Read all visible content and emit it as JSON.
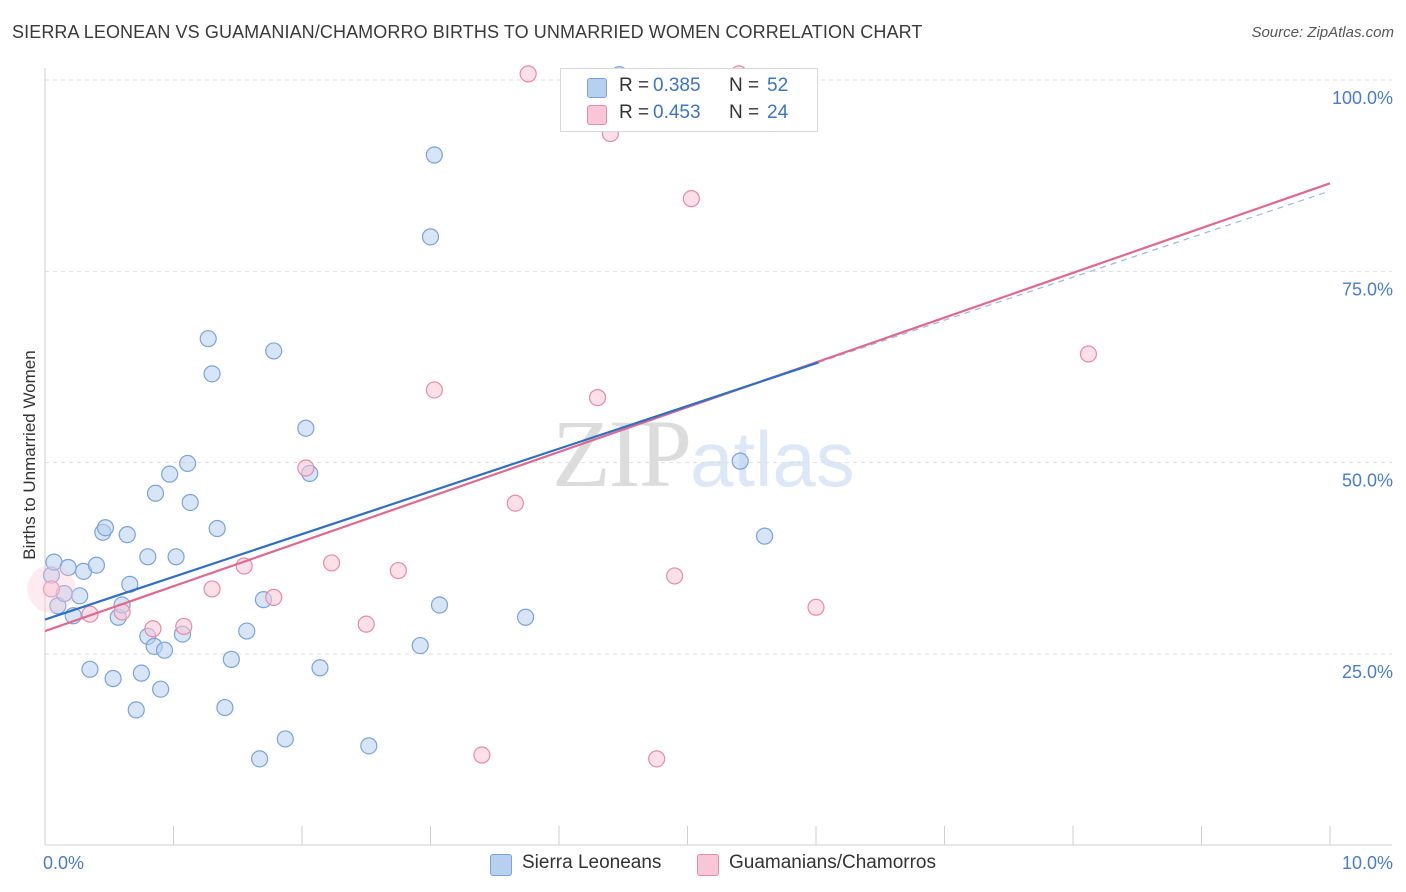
{
  "title": "SIERRA LEONEAN VS GUAMANIAN/CHAMORRO BIRTHS TO UNMARRIED WOMEN CORRELATION CHART",
  "source": "Source: ZipAtlas.com",
  "watermark": {
    "zip": "ZIP",
    "atlas": "atlas"
  },
  "legend": {
    "r_label": "R =",
    "n_label": "N =",
    "series1": {
      "r": "0.385",
      "n": "52"
    },
    "series2": {
      "r": "0.453",
      "n": "24"
    }
  },
  "bottom_legend": {
    "series1": "Sierra Leoneans",
    "series2": "Guamanians/Chamorros"
  },
  "colors": {
    "blue_fill": "#b8d0f0",
    "blue_stroke": "#7aa3d8",
    "blue_line": "#2f6fc4",
    "pink_fill": "#f8c6d6",
    "pink_stroke": "#e88aaa",
    "pink_line": "#e0688f",
    "tick_text": "#4a7cc9",
    "grid": "#dddddd"
  },
  "chart_data": {
    "type": "scatter",
    "title": "SIERRA LEONEAN VS GUAMANIAN/CHAMORRO BIRTHS TO UNMARRIED WOMEN CORRELATION CHART",
    "xlabel": "",
    "ylabel": "Births to Unmarried Women",
    "xlim": [
      0,
      10
    ],
    "ylim": [
      0,
      102
    ],
    "x_ticks": [
      {
        "value": 0,
        "label": "0.0%"
      },
      {
        "value": 10,
        "label": "10.0%"
      }
    ],
    "y_ticks": [
      {
        "value": 25,
        "label": "25.0%"
      },
      {
        "value": 50,
        "label": "50.0%"
      },
      {
        "value": 75,
        "label": "75.0%"
      },
      {
        "value": 100,
        "label": "100.0%"
      }
    ],
    "grid": true,
    "series": [
      {
        "name": "Sierra Leoneans",
        "color": "#7aa3d8",
        "points": [
          [
            0.05,
            35.3
          ],
          [
            0.07,
            37.0
          ],
          [
            0.1,
            31.3
          ],
          [
            0.15,
            32.9
          ],
          [
            0.18,
            36.3
          ],
          [
            0.22,
            30.0
          ],
          [
            0.27,
            32.6
          ],
          [
            0.3,
            35.8
          ],
          [
            0.35,
            23.0
          ],
          [
            0.4,
            36.6
          ],
          [
            0.45,
            40.9
          ],
          [
            0.47,
            41.5
          ],
          [
            0.53,
            21.8
          ],
          [
            0.57,
            29.8
          ],
          [
            0.6,
            31.4
          ],
          [
            0.64,
            40.6
          ],
          [
            0.66,
            34.1
          ],
          [
            0.71,
            17.7
          ],
          [
            0.75,
            22.5
          ],
          [
            0.8,
            27.3
          ],
          [
            0.8,
            37.7
          ],
          [
            0.85,
            26.0
          ],
          [
            0.86,
            46.0
          ],
          [
            0.9,
            20.4
          ],
          [
            0.93,
            25.5
          ],
          [
            0.97,
            48.5
          ],
          [
            1.02,
            37.7
          ],
          [
            1.07,
            27.6
          ],
          [
            1.11,
            49.9
          ],
          [
            1.13,
            44.8
          ],
          [
            1.27,
            66.2
          ],
          [
            1.3,
            61.6
          ],
          [
            1.34,
            41.4
          ],
          [
            1.4,
            18.0
          ],
          [
            1.45,
            24.3
          ],
          [
            1.57,
            28.0
          ],
          [
            1.67,
            11.3
          ],
          [
            1.7,
            32.1
          ],
          [
            1.78,
            64.6
          ],
          [
            1.87,
            13.9
          ],
          [
            2.03,
            54.5
          ],
          [
            2.06,
            48.6
          ],
          [
            2.14,
            23.2
          ],
          [
            2.52,
            13.0
          ],
          [
            2.92,
            26.1
          ],
          [
            3.0,
            79.5
          ],
          [
            3.03,
            90.2
          ],
          [
            3.07,
            31.4
          ],
          [
            3.74,
            29.8
          ],
          [
            4.47,
            100.7
          ],
          [
            5.41,
            50.2
          ],
          [
            5.6,
            40.4
          ]
        ]
      },
      {
        "name": "Guamanians/Chamorros",
        "color": "#e88aaa",
        "points": [
          [
            0.05,
            33.5
          ],
          [
            0.35,
            30.2
          ],
          [
            0.6,
            30.5
          ],
          [
            0.84,
            28.3
          ],
          [
            1.08,
            28.6
          ],
          [
            1.3,
            33.5
          ],
          [
            1.55,
            36.5
          ],
          [
            1.78,
            32.4
          ],
          [
            2.03,
            49.3
          ],
          [
            2.23,
            36.9
          ],
          [
            2.5,
            28.9
          ],
          [
            2.75,
            35.9
          ],
          [
            3.03,
            59.5
          ],
          [
            3.4,
            11.8
          ],
          [
            3.66,
            44.7
          ],
          [
            3.76,
            100.8
          ],
          [
            4.3,
            58.5
          ],
          [
            4.4,
            93.0
          ],
          [
            4.76,
            11.3
          ],
          [
            4.9,
            35.2
          ],
          [
            5.03,
            84.5
          ],
          [
            5.4,
            100.8
          ],
          [
            6.0,
            31.1
          ],
          [
            8.12,
            64.2
          ]
        ]
      }
    ],
    "trendlines": [
      {
        "series": "Sierra Leoneans",
        "from": [
          0,
          29.5
        ],
        "to": [
          6.02,
          63.1
        ],
        "dashed_extension_to": [
          10,
          85.5
        ]
      },
      {
        "series": "Guamanians/Chamorros",
        "from": [
          0,
          28.0
        ],
        "to": [
          10,
          86.5
        ]
      }
    ]
  }
}
